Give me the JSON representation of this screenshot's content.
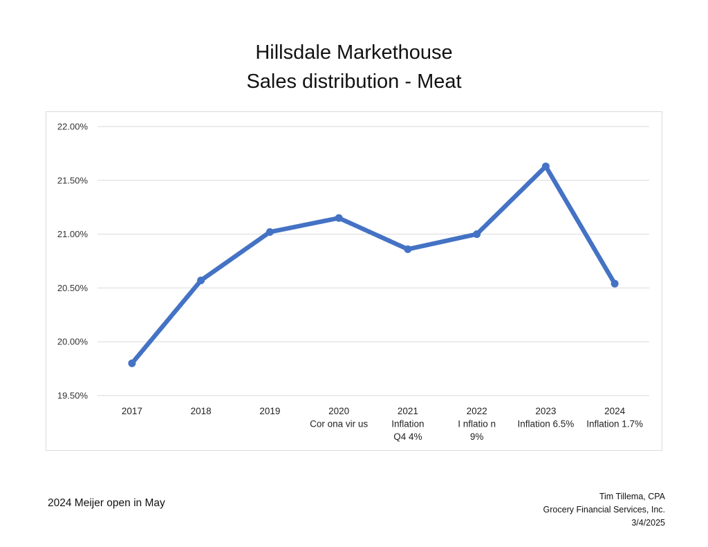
{
  "chart_data": {
    "type": "line",
    "title": [
      "Hillsdale Markethouse",
      "Sales distribution - Meat"
    ],
    "categories": [
      [
        "2017"
      ],
      [
        "2018"
      ],
      [
        "2019"
      ],
      [
        "2020",
        "Cor ona vir us"
      ],
      [
        "2021",
        "Inflation",
        "Q4 4%"
      ],
      [
        "2022",
        "I nflatio n",
        "9%"
      ],
      [
        "2023",
        "Inflation 6.5%"
      ],
      [
        "2024",
        "Inflation 1.7%"
      ]
    ],
    "series": [
      {
        "name": "Meat",
        "values": [
          19.8,
          20.57,
          21.02,
          21.15,
          20.86,
          21.0,
          21.63,
          20.54
        ]
      }
    ],
    "ylim": [
      19.5,
      22.0
    ],
    "yticks": [
      "22.00%",
      "21.50%",
      "21.00%",
      "20.50%",
      "20.00%",
      "19.50%"
    ],
    "ytick_values": [
      22.0,
      21.5,
      21.0,
      20.5,
      20.0,
      19.5
    ],
    "color": "#4472c4",
    "grid": true,
    "xlabel": "",
    "ylabel": ""
  },
  "footnote": "2024 Meijer open in May",
  "signature": {
    "name": "Tim Tillema, CPA",
    "company": "Grocery Financial Services, Inc.",
    "date": "3/4/2025"
  }
}
